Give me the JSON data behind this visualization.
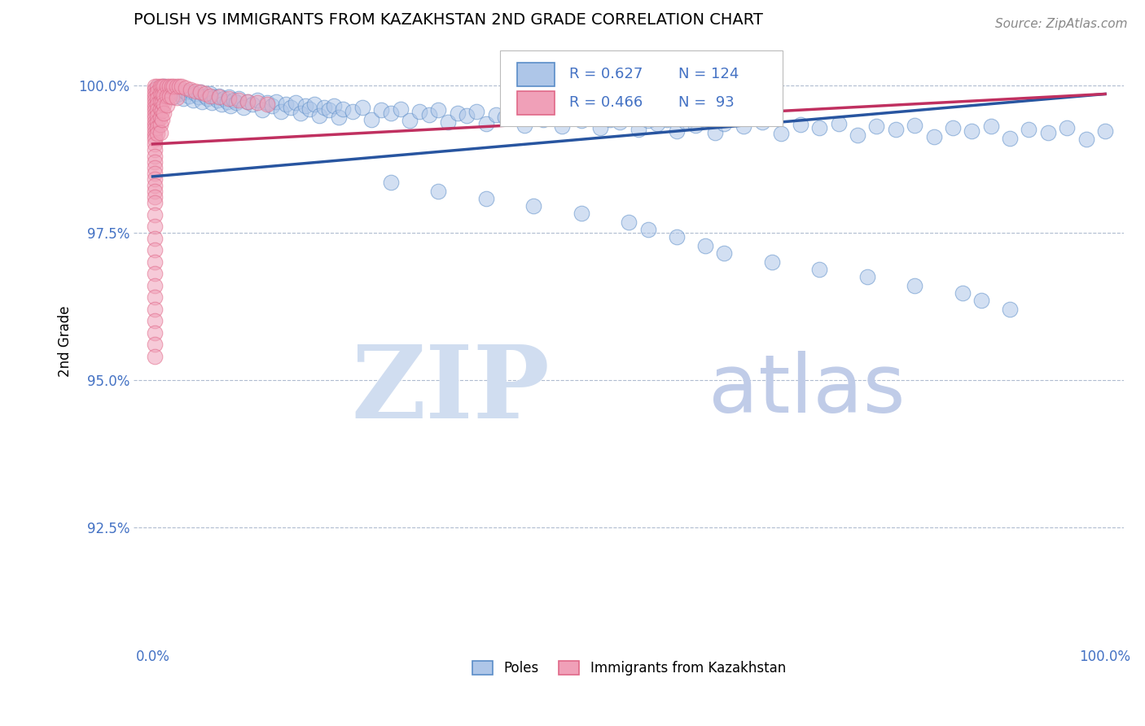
{
  "title": "POLISH VS IMMIGRANTS FROM KAZAKHSTAN 2ND GRADE CORRELATION CHART",
  "source_text": "Source: ZipAtlas.com",
  "ylabel": "2nd Grade",
  "watermark_zip": "ZIP",
  "watermark_atlas": "atlas",
  "xlim": [
    -0.02,
    1.02
  ],
  "ylim": [
    0.905,
    1.008
  ],
  "yticks": [
    0.925,
    0.95,
    0.975,
    1.0
  ],
  "ytick_labels": [
    "92.5%",
    "95.0%",
    "97.5%",
    "100.0%"
  ],
  "xticks": [
    0.0,
    0.5,
    1.0
  ],
  "xtick_labels": [
    "0.0%",
    "",
    "100.0%"
  ],
  "blue_R": 0.627,
  "blue_N": 124,
  "pink_R": 0.466,
  "pink_N": 93,
  "blue_color": "#aec6e8",
  "blue_edge_color": "#5b8dc8",
  "blue_line_color": "#2855a0",
  "pink_color": "#f0a0b8",
  "pink_edge_color": "#e06888",
  "pink_line_color": "#c03060",
  "legend_label_blue": "Poles",
  "legend_label_pink": "Immigrants from Kazakhstan",
  "title_fontsize": 14,
  "axis_color": "#4472c4",
  "grid_color": "#b0bcd0",
  "blue_trend": [
    0.0,
    1.0,
    0.9845,
    0.9985
  ],
  "pink_trend": [
    0.0,
    1.0,
    0.99,
    0.9985
  ],
  "blue_scatter": [
    [
      0.005,
      0.9995
    ],
    [
      0.008,
      0.999
    ],
    [
      0.01,
      0.9985
    ],
    [
      0.012,
      0.9998
    ],
    [
      0.015,
      0.9992
    ],
    [
      0.018,
      0.9988
    ],
    [
      0.02,
      0.9995
    ],
    [
      0.022,
      0.998
    ],
    [
      0.025,
      0.999
    ],
    [
      0.028,
      0.9985
    ],
    [
      0.03,
      0.9992
    ],
    [
      0.032,
      0.9978
    ],
    [
      0.035,
      0.9988
    ],
    [
      0.038,
      0.9982
    ],
    [
      0.04,
      0.999
    ],
    [
      0.042,
      0.9975
    ],
    [
      0.045,
      0.9985
    ],
    [
      0.048,
      0.998
    ],
    [
      0.05,
      0.9988
    ],
    [
      0.052,
      0.9972
    ],
    [
      0.055,
      0.9982
    ],
    [
      0.058,
      0.9978
    ],
    [
      0.06,
      0.9985
    ],
    [
      0.062,
      0.997
    ],
    [
      0.065,
      0.998
    ],
    [
      0.068,
      0.9975
    ],
    [
      0.07,
      0.9982
    ],
    [
      0.072,
      0.9968
    ],
    [
      0.075,
      0.9978
    ],
    [
      0.078,
      0.9972
    ],
    [
      0.08,
      0.998
    ],
    [
      0.082,
      0.9965
    ],
    [
      0.085,
      0.9975
    ],
    [
      0.088,
      0.997
    ],
    [
      0.09,
      0.9978
    ],
    [
      0.095,
      0.9962
    ],
    [
      0.1,
      0.9972
    ],
    [
      0.105,
      0.9968
    ],
    [
      0.11,
      0.9975
    ],
    [
      0.115,
      0.9958
    ],
    [
      0.12,
      0.997
    ],
    [
      0.125,
      0.9965
    ],
    [
      0.13,
      0.9972
    ],
    [
      0.135,
      0.9955
    ],
    [
      0.14,
      0.9968
    ],
    [
      0.145,
      0.9962
    ],
    [
      0.15,
      0.997
    ],
    [
      0.155,
      0.9952
    ],
    [
      0.16,
      0.9965
    ],
    [
      0.165,
      0.996
    ],
    [
      0.17,
      0.9968
    ],
    [
      0.175,
      0.9948
    ],
    [
      0.18,
      0.9962
    ],
    [
      0.185,
      0.9958
    ],
    [
      0.19,
      0.9965
    ],
    [
      0.195,
      0.9945
    ],
    [
      0.2,
      0.996
    ],
    [
      0.21,
      0.9955
    ],
    [
      0.22,
      0.9962
    ],
    [
      0.23,
      0.9942
    ],
    [
      0.24,
      0.9958
    ],
    [
      0.25,
      0.9952
    ],
    [
      0.26,
      0.996
    ],
    [
      0.27,
      0.994
    ],
    [
      0.28,
      0.9955
    ],
    [
      0.29,
      0.995
    ],
    [
      0.3,
      0.9958
    ],
    [
      0.31,
      0.9938
    ],
    [
      0.32,
      0.9952
    ],
    [
      0.33,
      0.9948
    ],
    [
      0.34,
      0.9955
    ],
    [
      0.35,
      0.9935
    ],
    [
      0.36,
      0.995
    ],
    [
      0.37,
      0.9945
    ],
    [
      0.38,
      0.9952
    ],
    [
      0.39,
      0.9932
    ],
    [
      0.4,
      0.9948
    ],
    [
      0.41,
      0.9942
    ],
    [
      0.42,
      0.995
    ],
    [
      0.43,
      0.993
    ],
    [
      0.44,
      0.9945
    ],
    [
      0.45,
      0.994
    ],
    [
      0.46,
      0.9948
    ],
    [
      0.47,
      0.9928
    ],
    [
      0.48,
      0.9942
    ],
    [
      0.49,
      0.9938
    ],
    [
      0.5,
      0.9945
    ],
    [
      0.51,
      0.9925
    ],
    [
      0.52,
      0.994
    ],
    [
      0.53,
      0.9935
    ],
    [
      0.54,
      0.9942
    ],
    [
      0.55,
      0.9922
    ],
    [
      0.56,
      0.9938
    ],
    [
      0.57,
      0.9932
    ],
    [
      0.58,
      0.994
    ],
    [
      0.59,
      0.992
    ],
    [
      0.6,
      0.9935
    ],
    [
      0.62,
      0.993
    ],
    [
      0.64,
      0.9938
    ],
    [
      0.66,
      0.9918
    ],
    [
      0.68,
      0.9933
    ],
    [
      0.7,
      0.9928
    ],
    [
      0.72,
      0.9935
    ],
    [
      0.74,
      0.9915
    ],
    [
      0.76,
      0.993
    ],
    [
      0.78,
      0.9925
    ],
    [
      0.8,
      0.9932
    ],
    [
      0.82,
      0.9912
    ],
    [
      0.84,
      0.9928
    ],
    [
      0.86,
      0.9922
    ],
    [
      0.88,
      0.993
    ],
    [
      0.9,
      0.991
    ],
    [
      0.92,
      0.9925
    ],
    [
      0.94,
      0.992
    ],
    [
      0.96,
      0.9928
    ],
    [
      0.98,
      0.9908
    ],
    [
      1.0,
      0.9922
    ],
    [
      0.25,
      0.9835
    ],
    [
      0.3,
      0.982
    ],
    [
      0.35,
      0.9808
    ],
    [
      0.4,
      0.9795
    ],
    [
      0.45,
      0.9782
    ],
    [
      0.5,
      0.9768
    ],
    [
      0.52,
      0.9755
    ],
    [
      0.55,
      0.9742
    ],
    [
      0.58,
      0.9728
    ],
    [
      0.6,
      0.9715
    ],
    [
      0.65,
      0.97
    ],
    [
      0.7,
      0.9688
    ],
    [
      0.75,
      0.9675
    ],
    [
      0.8,
      0.966
    ],
    [
      0.85,
      0.9648
    ],
    [
      0.87,
      0.9635
    ],
    [
      0.9,
      0.962
    ]
  ],
  "pink_scatter": [
    [
      0.002,
      0.9998
    ],
    [
      0.002,
      0.9992
    ],
    [
      0.002,
      0.9986
    ],
    [
      0.002,
      0.998
    ],
    [
      0.002,
      0.9974
    ],
    [
      0.002,
      0.9968
    ],
    [
      0.002,
      0.9962
    ],
    [
      0.002,
      0.9956
    ],
    [
      0.002,
      0.995
    ],
    [
      0.002,
      0.9944
    ],
    [
      0.002,
      0.9938
    ],
    [
      0.002,
      0.9932
    ],
    [
      0.002,
      0.9926
    ],
    [
      0.002,
      0.992
    ],
    [
      0.002,
      0.9914
    ],
    [
      0.002,
      0.9908
    ],
    [
      0.002,
      0.99
    ],
    [
      0.002,
      0.989
    ],
    [
      0.002,
      0.988
    ],
    [
      0.002,
      0.987
    ],
    [
      0.002,
      0.986
    ],
    [
      0.002,
      0.985
    ],
    [
      0.002,
      0.984
    ],
    [
      0.002,
      0.983
    ],
    [
      0.002,
      0.982
    ],
    [
      0.002,
      0.981
    ],
    [
      0.002,
      0.98
    ],
    [
      0.002,
      0.978
    ],
    [
      0.002,
      0.976
    ],
    [
      0.002,
      0.974
    ],
    [
      0.002,
      0.972
    ],
    [
      0.002,
      0.97
    ],
    [
      0.002,
      0.968
    ],
    [
      0.002,
      0.966
    ],
    [
      0.002,
      0.964
    ],
    [
      0.002,
      0.962
    ],
    [
      0.002,
      0.96
    ],
    [
      0.002,
      0.958
    ],
    [
      0.002,
      0.956
    ],
    [
      0.002,
      0.954
    ],
    [
      0.005,
      0.9998
    ],
    [
      0.005,
      0.9988
    ],
    [
      0.005,
      0.9978
    ],
    [
      0.005,
      0.9968
    ],
    [
      0.005,
      0.9958
    ],
    [
      0.005,
      0.9948
    ],
    [
      0.005,
      0.9938
    ],
    [
      0.005,
      0.9928
    ],
    [
      0.005,
      0.9918
    ],
    [
      0.008,
      0.9998
    ],
    [
      0.008,
      0.9985
    ],
    [
      0.008,
      0.9972
    ],
    [
      0.008,
      0.9959
    ],
    [
      0.008,
      0.9946
    ],
    [
      0.008,
      0.9933
    ],
    [
      0.008,
      0.992
    ],
    [
      0.01,
      0.9998
    ],
    [
      0.01,
      0.9984
    ],
    [
      0.01,
      0.997
    ],
    [
      0.01,
      0.9956
    ],
    [
      0.01,
      0.9942
    ],
    [
      0.012,
      0.9998
    ],
    [
      0.012,
      0.9983
    ],
    [
      0.012,
      0.9968
    ],
    [
      0.012,
      0.9953
    ],
    [
      0.015,
      0.9998
    ],
    [
      0.015,
      0.9982
    ],
    [
      0.015,
      0.9966
    ],
    [
      0.018,
      0.9998
    ],
    [
      0.018,
      0.9981
    ],
    [
      0.02,
      0.9998
    ],
    [
      0.02,
      0.998
    ],
    [
      0.022,
      0.9998
    ],
    [
      0.025,
      0.9998
    ],
    [
      0.025,
      0.9979
    ],
    [
      0.028,
      0.9998
    ],
    [
      0.03,
      0.9998
    ],
    [
      0.035,
      0.9995
    ],
    [
      0.04,
      0.9992
    ],
    [
      0.045,
      0.999
    ],
    [
      0.05,
      0.9988
    ],
    [
      0.055,
      0.9985
    ],
    [
      0.06,
      0.9982
    ],
    [
      0.07,
      0.998
    ],
    [
      0.08,
      0.9978
    ],
    [
      0.09,
      0.9975
    ],
    [
      0.1,
      0.9972
    ],
    [
      0.11,
      0.997
    ],
    [
      0.12,
      0.9968
    ]
  ]
}
